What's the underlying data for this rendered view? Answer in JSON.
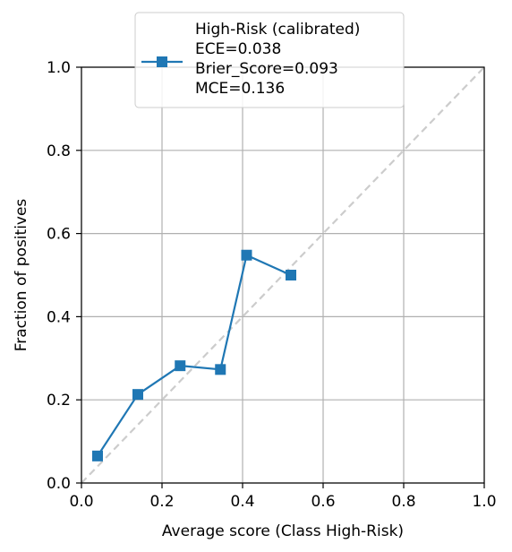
{
  "chart_data": {
    "type": "line",
    "title": "",
    "xlabel": "Average score (Class High-Risk)",
    "ylabel": "Fraction of positives",
    "xlim": [
      0.0,
      1.0
    ],
    "ylim": [
      0.0,
      1.0
    ],
    "grid": true,
    "x_ticks": [
      "0.0",
      "0.2",
      "0.4",
      "0.6",
      "0.8",
      "1.0"
    ],
    "y_ticks": [
      "0.0",
      "0.2",
      "0.4",
      "0.6",
      "0.8",
      "1.0"
    ],
    "reference_line": {
      "style": "dashed",
      "color": "#cccccc",
      "x": [
        0.0,
        1.0
      ],
      "y": [
        0.0,
        1.0
      ]
    },
    "legend": {
      "placement": "top-center",
      "lines": [
        "High-Risk (calibrated)",
        "ECE=0.038",
        "Brier_Score=0.093",
        "MCE=0.136"
      ]
    },
    "series": [
      {
        "name": "High-Risk (calibrated)",
        "color": "#1f77b4",
        "marker": "square",
        "x": [
          0.04,
          0.14,
          0.245,
          0.345,
          0.41,
          0.52
        ],
        "y": [
          0.065,
          0.213,
          0.282,
          0.273,
          0.548,
          0.5
        ]
      }
    ]
  }
}
